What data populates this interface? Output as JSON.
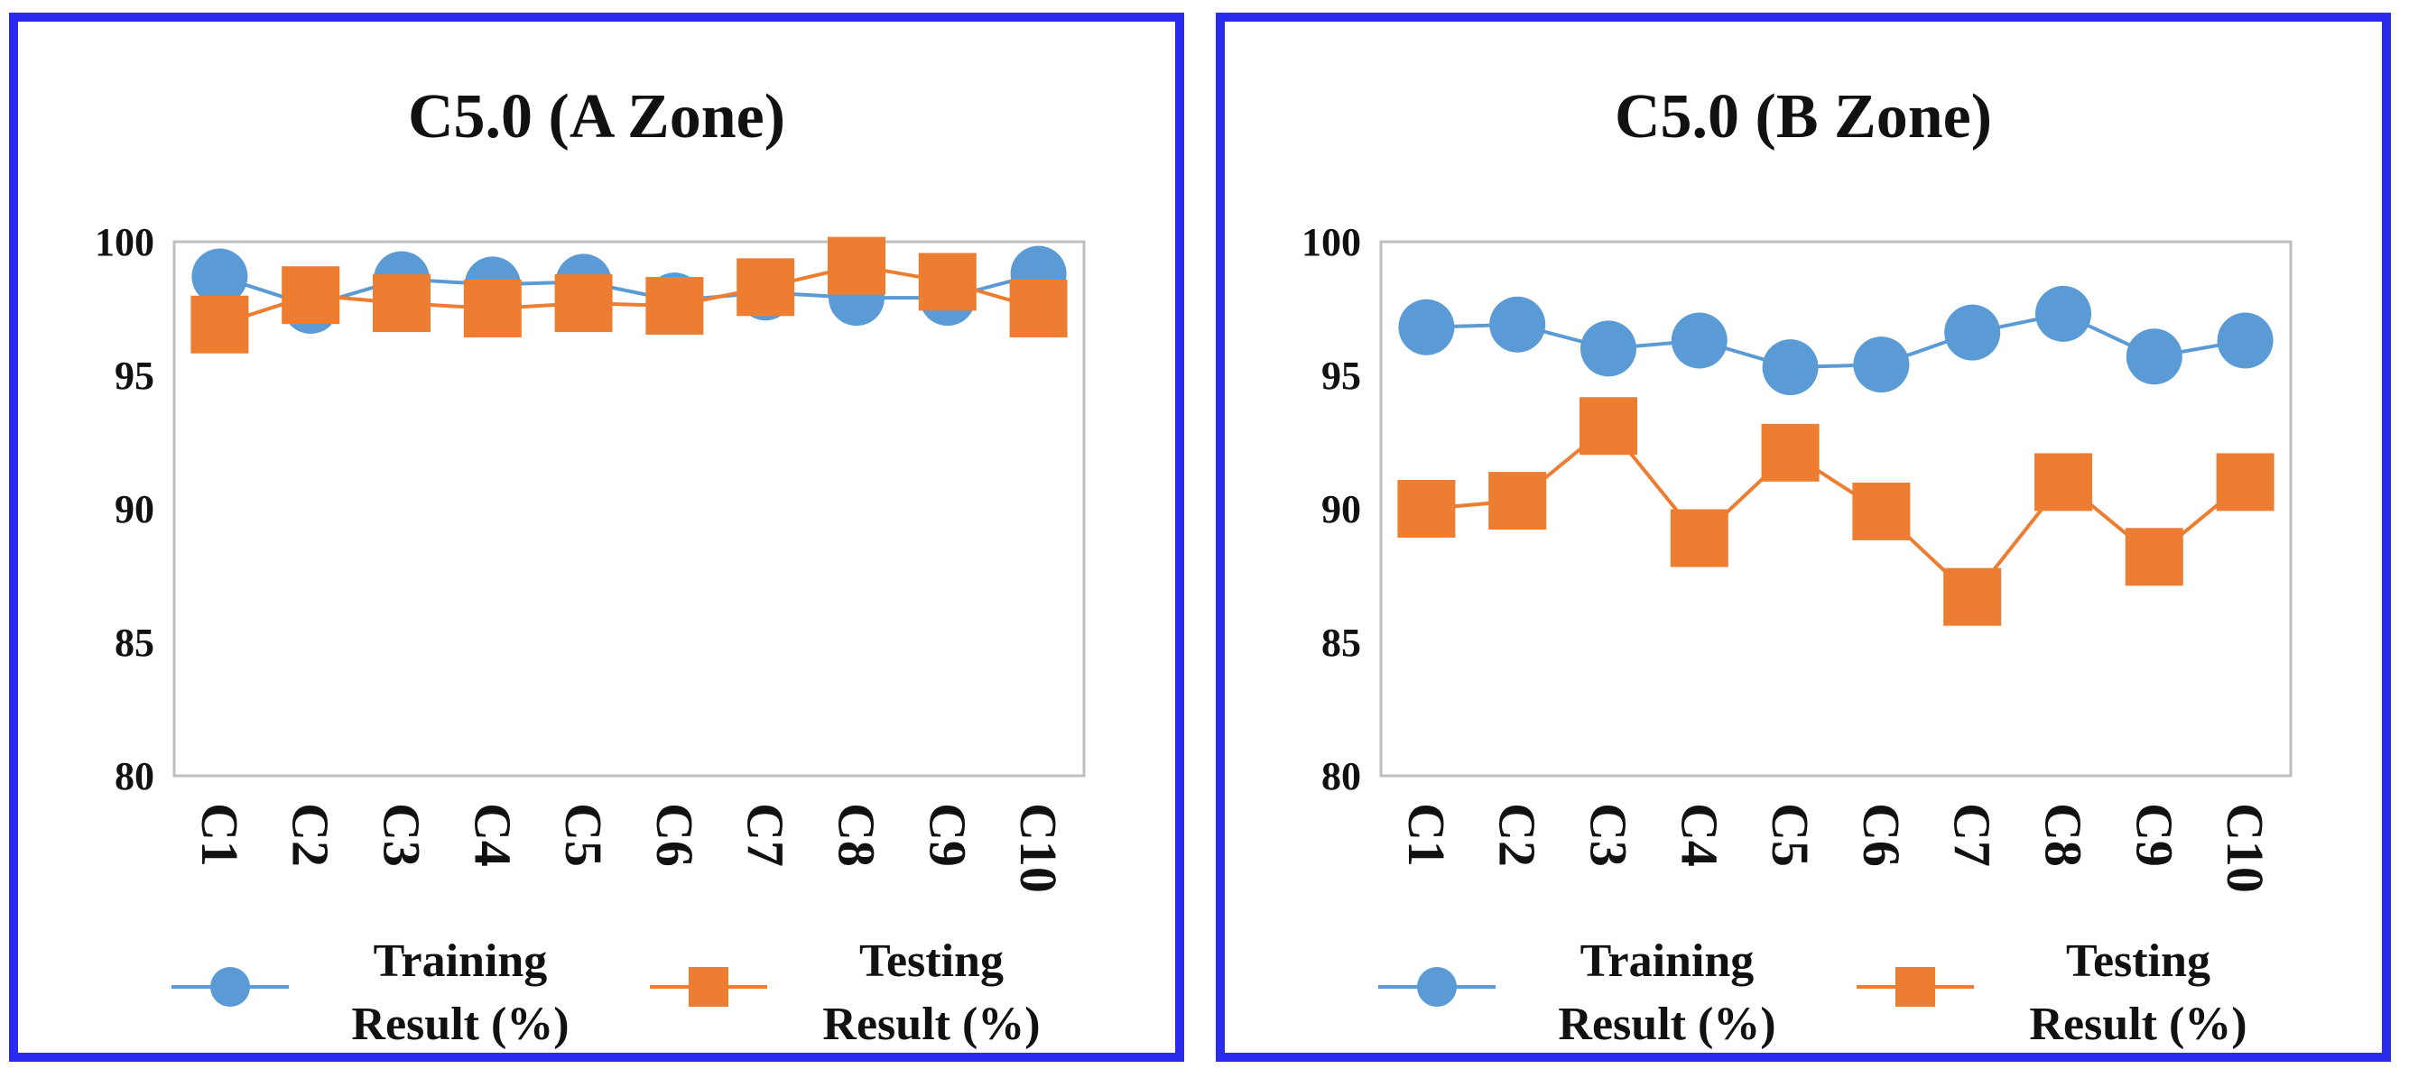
{
  "colors": {
    "border": "#2b2bf0",
    "training": "#5b9bd5",
    "testing": "#ed7d31",
    "frame": "#bfbfbf"
  },
  "chart_data": [
    {
      "type": "line",
      "title": "C5.0 (A Zone)",
      "categories": [
        "C1",
        "C2",
        "C3",
        "C4",
        "C5",
        "C6",
        "C7",
        "C8",
        "C9",
        "C10"
      ],
      "ylim": [
        80,
        100
      ],
      "yticks": [
        "100",
        "95",
        "90",
        "85",
        "80"
      ],
      "series": [
        {
          "name": "Training Result (%)",
          "legend_line1": "Training",
          "legend_line2": "Result (%)",
          "marker": "circle",
          "values": [
            98.7,
            97.6,
            98.6,
            98.4,
            98.5,
            97.8,
            98.1,
            97.9,
            97.9,
            98.8
          ]
        },
        {
          "name": "Testing Result (%)",
          "legend_line1": "Testing",
          "legend_line2": "Result (%)",
          "marker": "square",
          "values": [
            96.9,
            98.0,
            97.7,
            97.5,
            97.7,
            97.6,
            98.3,
            99.1,
            98.5,
            97.5
          ]
        }
      ],
      "legend": "bottom"
    },
    {
      "type": "line",
      "title": "C5.0 (B Zone)",
      "categories": [
        "C1",
        "C2",
        "C3",
        "C4",
        "C5",
        "C6",
        "C7",
        "C8",
        "C9",
        "C10"
      ],
      "ylim": [
        80,
        100
      ],
      "yticks": [
        "100",
        "95",
        "90",
        "85",
        "80"
      ],
      "series": [
        {
          "name": "Training Result (%)",
          "legend_line1": "Training",
          "legend_line2": "Result (%)",
          "marker": "circle",
          "values": [
            96.8,
            96.9,
            96.0,
            96.3,
            95.3,
            95.4,
            96.6,
            97.3,
            95.7,
            96.3
          ]
        },
        {
          "name": "Testing Result (%)",
          "legend_line1": "Testing",
          "legend_line2": "Result (%)",
          "marker": "square",
          "values": [
            90.0,
            90.3,
            93.1,
            88.9,
            92.1,
            89.9,
            86.7,
            91.0,
            88.2,
            91.0
          ]
        }
      ],
      "legend": "bottom"
    }
  ]
}
